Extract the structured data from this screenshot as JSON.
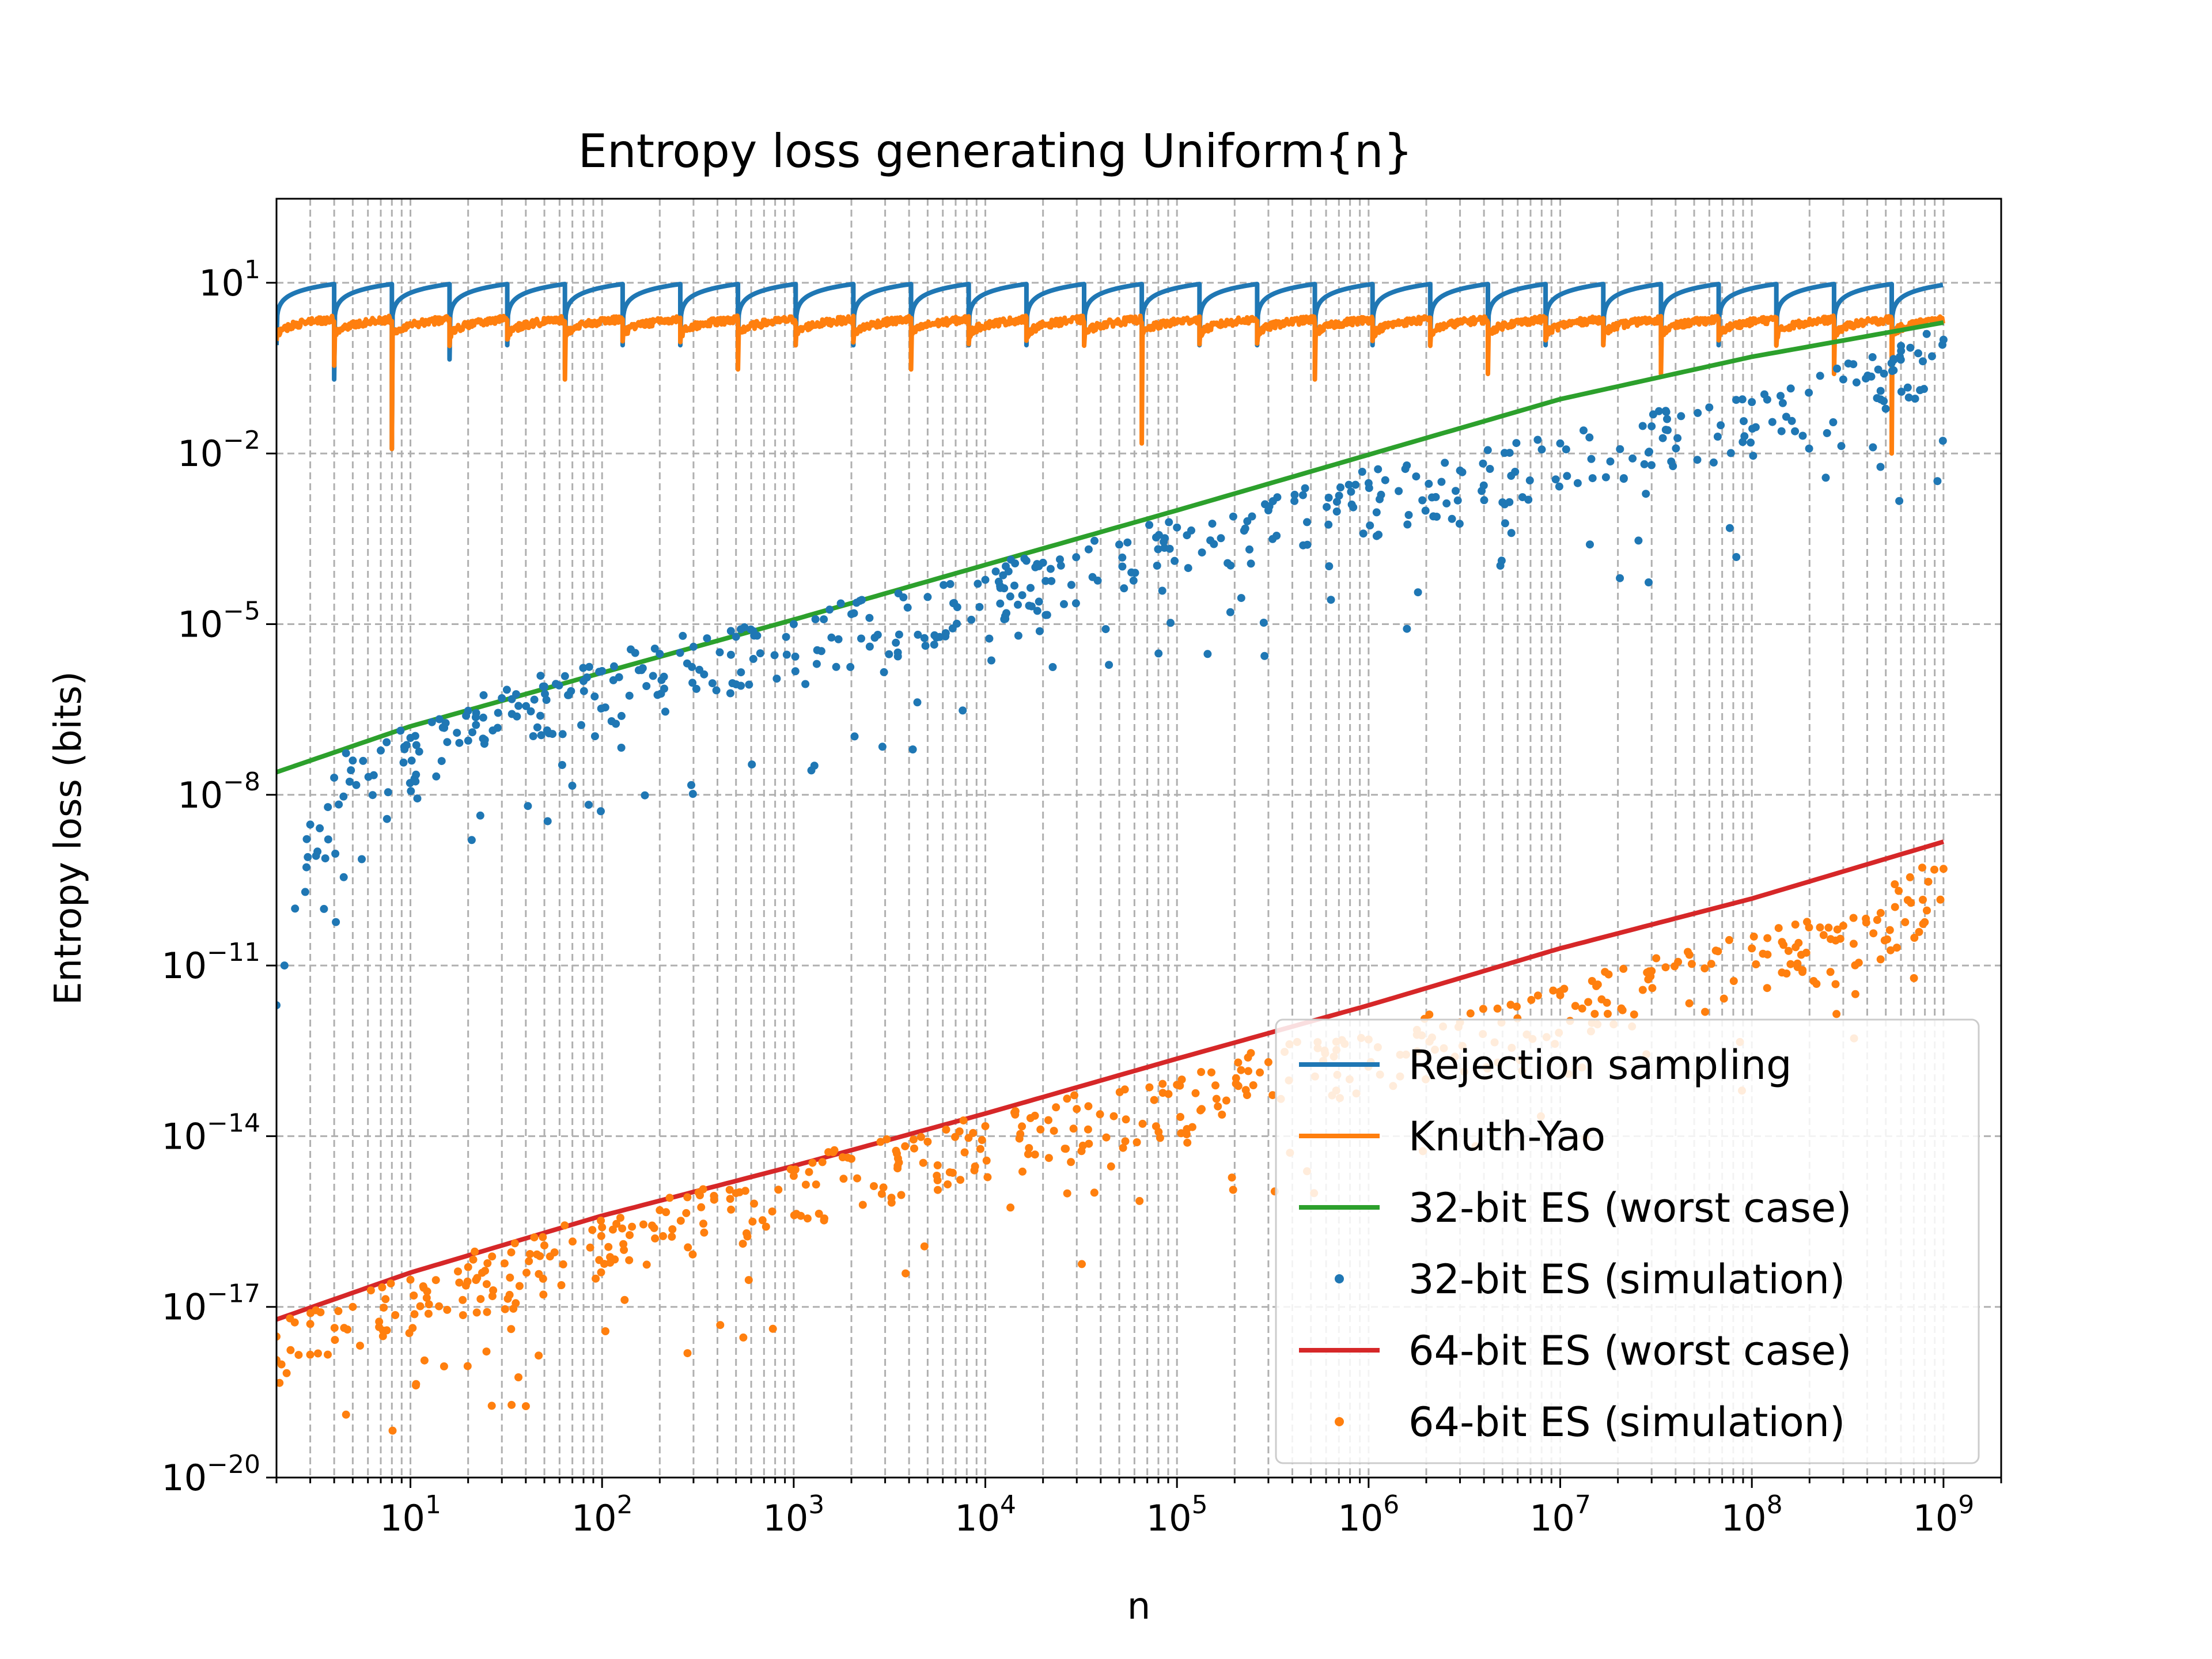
{
  "chart_data": {
    "type": "line",
    "title": "Entropy loss generating Uniform{n}",
    "xlabel": "n",
    "ylabel": "Entropy loss (bits)",
    "xscale": "log",
    "yscale": "log",
    "xlim": [
      2,
      2000000000
    ],
    "ylim": [
      1e-20,
      300
    ],
    "grid": true,
    "legend_position": "lower-right",
    "x_ticks": [
      {
        "base": "10",
        "exp": "1",
        "value": 10
      },
      {
        "base": "10",
        "exp": "2",
        "value": 100
      },
      {
        "base": "10",
        "exp": "3",
        "value": 1000
      },
      {
        "base": "10",
        "exp": "4",
        "value": 10000
      },
      {
        "base": "10",
        "exp": "5",
        "value": 100000
      },
      {
        "base": "10",
        "exp": "6",
        "value": 1000000
      },
      {
        "base": "10",
        "exp": "7",
        "value": 10000000
      },
      {
        "base": "10",
        "exp": "8",
        "value": 100000000
      },
      {
        "base": "10",
        "exp": "9",
        "value": 1000000000
      }
    ],
    "y_ticks": [
      {
        "base": "10",
        "exp": "1",
        "value": 10
      },
      {
        "base": "10",
        "exp": "−2",
        "value": 0.01
      },
      {
        "base": "10",
        "exp": "−5",
        "value": 1e-05
      },
      {
        "base": "10",
        "exp": "−8",
        "value": 1e-08
      },
      {
        "base": "10",
        "exp": "−11",
        "value": 1e-11
      },
      {
        "base": "10",
        "exp": "−14",
        "value": 1e-14
      },
      {
        "base": "10",
        "exp": "−17",
        "value": 1e-17
      },
      {
        "base": "10",
        "exp": "−20",
        "value": 1e-20
      }
    ],
    "series": [
      {
        "name": "Rejection sampling",
        "kind": "line",
        "color": "#1f77b4",
        "shape": "sawtooth",
        "x_range": [
          2,
          1000000000
        ],
        "peak_value": 9.5,
        "low_value": 0.8,
        "deep_dips": [
          {
            "x": 4,
            "y": 0.2
          },
          {
            "x": 8,
            "y": 0.012
          },
          {
            "x": 16,
            "y": 0.45
          },
          {
            "x": 64,
            "y": 0.3
          }
        ]
      },
      {
        "name": "Knuth-Yao",
        "kind": "line",
        "color": "#ff7f0e",
        "shape": "noisy-sawtooth",
        "x_range": [
          2,
          1000000000
        ],
        "peak_value": 2.3,
        "low_value": 0.9,
        "deep_dips": [
          {
            "x": 4,
            "y": 0.35
          },
          {
            "x": 8,
            "y": 0.012
          },
          {
            "x": 64,
            "y": 0.2
          },
          {
            "x": 512,
            "y": 0.3
          },
          {
            "x": 4096,
            "y": 0.3
          },
          {
            "x": 65536,
            "y": 0.015
          },
          {
            "x": 524288,
            "y": 0.2
          },
          {
            "x": 4194304,
            "y": 0.25
          },
          {
            "x": 33554432,
            "y": 0.25
          },
          {
            "x": 268435456,
            "y": 0.25
          },
          {
            "x": 536870912,
            "y": 0.01
          }
        ]
      },
      {
        "name": "32-bit ES (worst case)",
        "kind": "line",
        "color": "#2ca02c",
        "x": [
          2,
          10,
          100,
          1000,
          10000,
          100000,
          1000000,
          10000000,
          100000000,
          1000000000
        ],
        "y": [
          2.5e-08,
          1.6e-07,
          1.4e-06,
          1.2e-05,
          0.00011,
          0.001,
          0.0095,
          0.09,
          0.5,
          2.0
        ]
      },
      {
        "name": "32-bit ES (simulation)",
        "kind": "scatter",
        "color": "#1f77b4",
        "x": [
          2,
          2.2,
          2.5,
          3,
          4,
          5,
          7,
          10,
          15,
          20,
          30,
          50,
          80,
          100,
          200,
          300,
          500,
          1000,
          2000,
          5000,
          10000,
          20000,
          50000,
          100000,
          300000,
          1000000,
          3000000,
          10000000,
          30000000,
          100000000,
          300000000,
          1000000000
        ],
        "y": [
          2e-12,
          1e-11,
          1e-10,
          3e-09,
          2e-08,
          4e-08,
          6e-08,
          1e-07,
          1.5e-07,
          3e-07,
          5e-07,
          8e-07,
          1e-06,
          1.5e-06,
          3e-06,
          4e-06,
          6e-06,
          1e-05,
          1.5e-05,
          3e-05,
          6e-05,
          0.00012,
          0.00025,
          0.0005,
          0.001,
          0.003,
          0.005,
          0.015,
          0.03,
          0.08,
          0.2,
          1.0
        ]
      },
      {
        "name": "64-bit ES (worst case)",
        "kind": "line",
        "color": "#d62728",
        "x": [
          2,
          10,
          100,
          1000,
          10000,
          100000,
          1000000,
          10000000,
          100000000,
          1000000000
        ],
        "y": [
          6e-18,
          4e-17,
          4e-16,
          3e-15,
          2.5e-14,
          2.3e-13,
          2e-12,
          2e-11,
          1.5e-10,
          1.5e-09
        ]
      },
      {
        "name": "64-bit ES (simulation)",
        "kind": "scatter",
        "color": "#ff7f0e",
        "x": [
          2,
          3,
          5,
          10,
          20,
          50,
          100,
          200,
          500,
          1000,
          2000,
          5000,
          10000,
          30000,
          100000,
          300000,
          1000000,
          3000000,
          10000000,
          30000000,
          100000000,
          300000000,
          1000000000
        ],
        "y": [
          3e-18,
          5e-18,
          1e-17,
          3e-17,
          5e-17,
          1.2e-16,
          2.5e-16,
          5e-16,
          1e-15,
          2e-15,
          4e-15,
          8e-15,
          1.5e-14,
          3e-14,
          8e-14,
          2e-13,
          5e-13,
          1e-12,
          3e-12,
          8e-12,
          2e-11,
          5e-11,
          5e-10
        ]
      }
    ]
  }
}
